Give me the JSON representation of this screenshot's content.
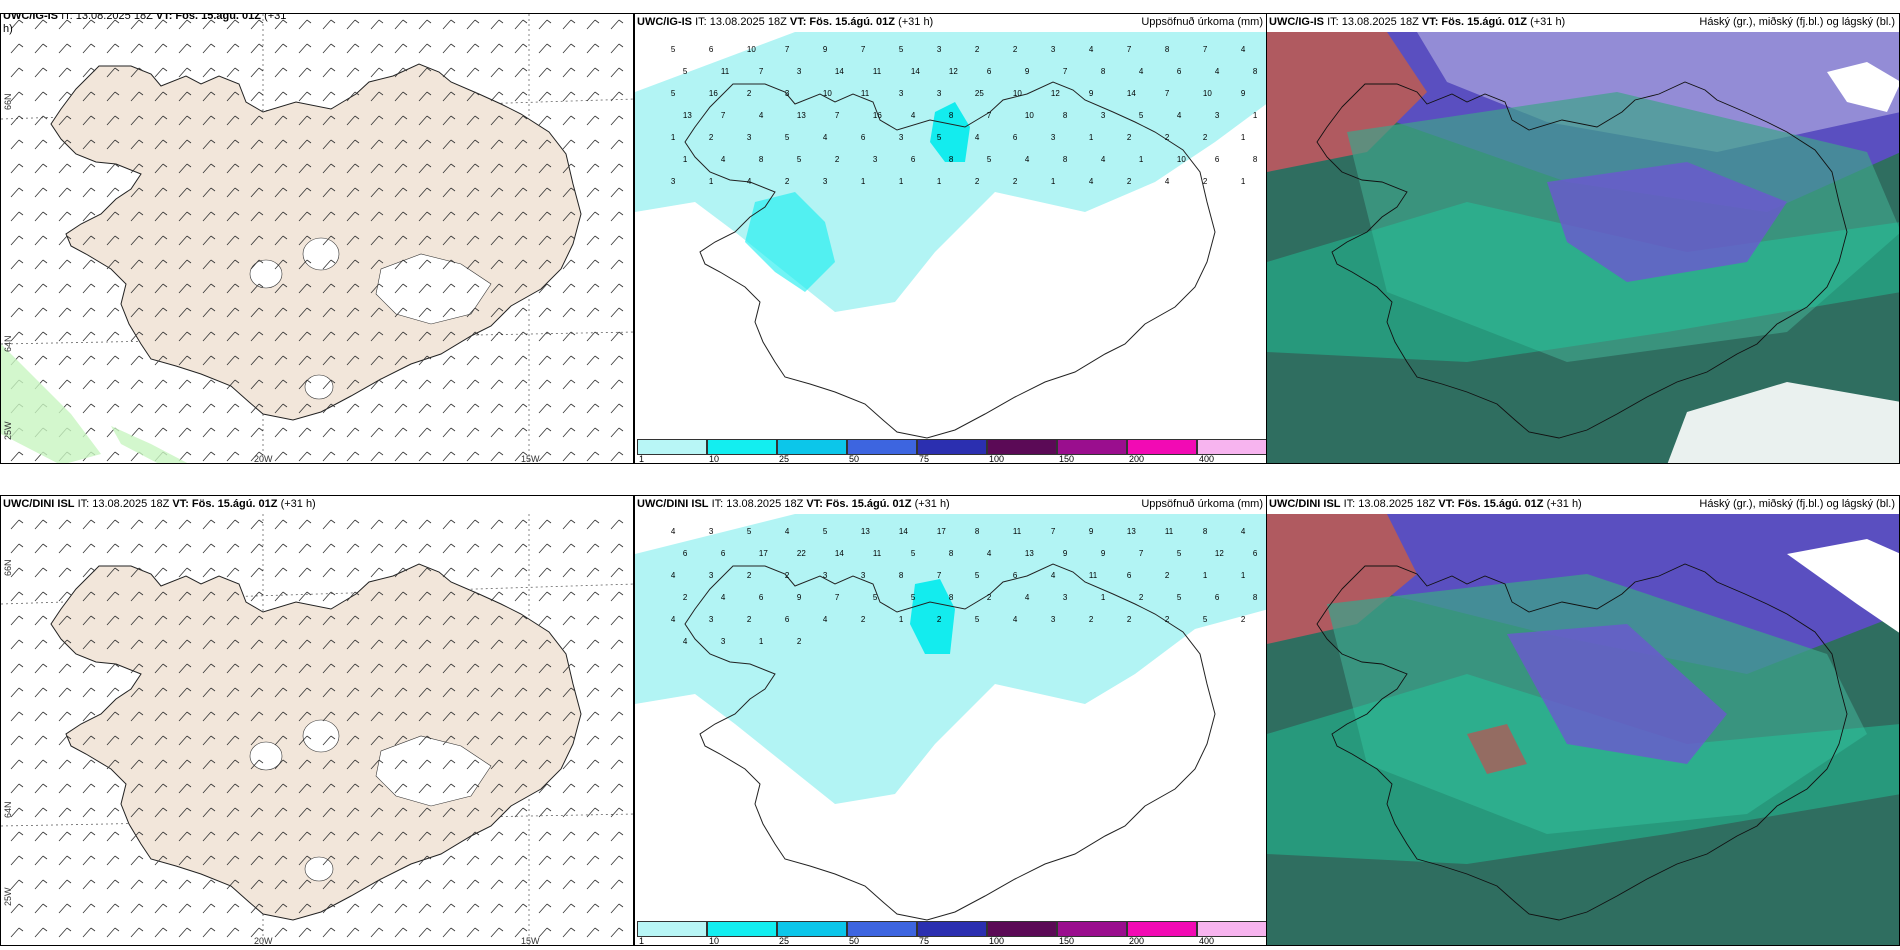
{
  "row1": {
    "wind": {
      "title_model": "UWC/IG-IS",
      "title_it": "IT: 13.08.2025 18Z",
      "title_vt": "VT: Fös. 15.ágú. 01Z",
      "title_lead": "(+31",
      "title_wrap": "h)"
    },
    "precip": {
      "title_model": "UWC/IG-IS",
      "title_it": "IT: 13.08.2025 18Z",
      "title_vt": "VT: Fös. 15.ágú. 01Z",
      "title_lead": "(+31 h)",
      "right_label": "Uppsöfnuð úrkoma (mm)"
    },
    "cloud": {
      "title_model": "UWC/IG-IS",
      "title_it": "IT: 13.08.2025 18Z",
      "title_vt": "VT: Fös. 15.ágú. 01Z",
      "title_lead": "(+31 h)",
      "right_label": "Háský (gr.), miðský (fj.bl.) og lágský (bl.)"
    }
  },
  "row2": {
    "wind": {
      "title_model": "UWC/DINI ISL",
      "title_it": "IT: 13.08.2025 18Z",
      "title_vt": "VT: Fös. 15.ágú. 01Z",
      "title_lead": "(+31 h)"
    },
    "precip": {
      "title_model": "UWC/DINI ISL",
      "title_it": "IT: 13.08.2025 18Z",
      "title_vt": "VT: Fös. 15.ágú. 01Z",
      "title_lead": "(+31 h)",
      "right_label": "Uppsöfnuð úrkoma (mm)"
    },
    "cloud": {
      "title_model": "UWC/DINI ISL",
      "title_it": "IT: 13.08.2025 18Z",
      "title_vt": "VT: Fös. 15.ágú. 01Z",
      "title_lead": "(+31 h)",
      "right_label": "Háský (gr.), miðský (fj.bl.) og lágský (bl.)"
    }
  },
  "axis_labels": {
    "lon_20w": "20W",
    "lon_15w": "15W",
    "lat_66n": "66N",
    "lat_64n": "64N",
    "lat_25w": "25W"
  },
  "colorbar": {
    "ticks": [
      "1",
      "10",
      "25",
      "50",
      "75",
      "100",
      "150",
      "200",
      "400"
    ],
    "colors": [
      "#b8f6f6",
      "#13eef0",
      "#0cc6ea",
      "#3d65e0",
      "#2b2fb0",
      "#5b0a56",
      "#9a0e8e",
      "#f20ab4",
      "#f7b4ef"
    ]
  },
  "map_colors": {
    "land": "#f2e6da",
    "sea": "#ffffff",
    "precip_light": "#b2f4f4",
    "precip_mid": "#13ecee",
    "precip_high": "#0cc8ea"
  },
  "precip_numbers_row1": [
    "5",
    "6",
    "10",
    "7",
    "9",
    "7",
    "5",
    "3",
    "2",
    "2",
    "3",
    "4",
    "7",
    "8",
    "7",
    "4",
    "5",
    "11",
    "7",
    "3",
    "14",
    "11",
    "14",
    "12",
    "6",
    "9",
    "7",
    "8",
    "4",
    "6",
    "4",
    "8",
    "5",
    "16",
    "2",
    "3",
    "10",
    "11",
    "3",
    "3",
    "25",
    "10",
    "12",
    "9",
    "14",
    "7",
    "10",
    "9",
    "13",
    "7",
    "4",
    "13",
    "7",
    "16",
    "4",
    "8",
    "7",
    "10",
    "8",
    "3",
    "5",
    "4",
    "3",
    "1",
    "1",
    "2",
    "3",
    "5",
    "4",
    "6",
    "3",
    "5",
    "4",
    "6",
    "3",
    "1",
    "2",
    "2",
    "2",
    "1",
    "1",
    "4",
    "8",
    "5",
    "2",
    "3",
    "6",
    "8",
    "5",
    "4",
    "8",
    "4",
    "1",
    "10",
    "6",
    "8",
    "3",
    "1",
    "4",
    "2",
    "3",
    "1",
    "1",
    "1",
    "2",
    "2",
    "1",
    "4",
    "2",
    "4",
    "2",
    "1"
  ],
  "precip_numbers_row2": [
    "4",
    "3",
    "5",
    "4",
    "5",
    "13",
    "14",
    "17",
    "8",
    "11",
    "7",
    "9",
    "13",
    "11",
    "8",
    "4",
    "6",
    "6",
    "17",
    "22",
    "14",
    "11",
    "5",
    "8",
    "4",
    "13",
    "9",
    "9",
    "7",
    "5",
    "12",
    "6",
    "4",
    "3",
    "2",
    "2",
    "3",
    "3",
    "8",
    "7",
    "5",
    "6",
    "4",
    "11",
    "6",
    "2",
    "1",
    "1",
    "2",
    "4",
    "6",
    "9",
    "7",
    "5",
    "5",
    "8",
    "2",
    "4",
    "3",
    "1",
    "2",
    "5",
    "6",
    "8",
    "4",
    "3",
    "2",
    "6",
    "4",
    "2",
    "1",
    "2",
    "5",
    "4",
    "3",
    "2",
    "2",
    "2",
    "5",
    "2",
    "4",
    "3",
    "1",
    "2"
  ]
}
